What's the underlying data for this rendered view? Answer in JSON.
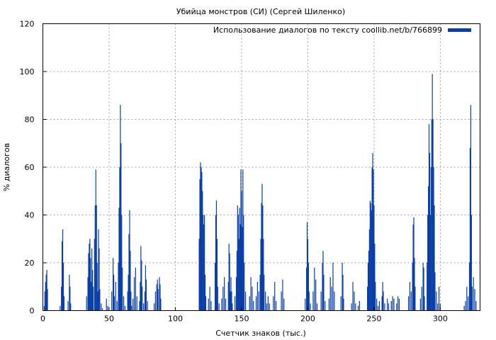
{
  "chart_data": {
    "type": "bar",
    "title": "Убийца монстров (СИ) (Сергей Шиленко)",
    "xlabel": "Счетчик знаков (тыс.)",
    "ylabel": "% диалогов",
    "xlim": [
      0,
      330
    ],
    "ylim": [
      0,
      120
    ],
    "xticks": [
      0,
      50,
      100,
      150,
      200,
      250,
      300
    ],
    "yticks": [
      0,
      20,
      40,
      60,
      80,
      100,
      120
    ],
    "grid": true,
    "legend_position": "top-right",
    "bar_color": "#0a3fa8",
    "series": [
      {
        "name": "Использование диалогов по тексту coollib.net/b/766899",
        "points": [
          [
            1,
            2
          ],
          [
            1.5,
            8
          ],
          [
            2,
            12
          ],
          [
            2.5,
            15
          ],
          [
            3,
            17
          ],
          [
            3.5,
            9
          ],
          [
            13,
            2
          ],
          [
            14,
            10
          ],
          [
            14.5,
            29
          ],
          [
            15,
            34
          ],
          [
            15.5,
            20
          ],
          [
            16,
            6
          ],
          [
            19,
            4
          ],
          [
            20,
            15
          ],
          [
            20.5,
            10
          ],
          [
            21,
            3
          ],
          [
            33,
            6
          ],
          [
            34,
            14
          ],
          [
            34.5,
            24
          ],
          [
            35,
            28
          ],
          [
            35.5,
            30
          ],
          [
            36,
            22
          ],
          [
            36.5,
            12
          ],
          [
            37,
            26
          ],
          [
            37.5,
            17
          ],
          [
            38,
            10
          ],
          [
            39,
            30
          ],
          [
            39.5,
            44
          ],
          [
            40,
            59
          ],
          [
            40.5,
            44
          ],
          [
            41,
            20
          ],
          [
            41.5,
            8
          ],
          [
            42,
            34
          ],
          [
            42.5,
            26
          ],
          [
            43,
            9
          ],
          [
            44,
            3
          ],
          [
            45,
            1
          ],
          [
            48,
            5
          ],
          [
            49,
            2
          ],
          [
            52,
            8
          ],
          [
            53,
            22
          ],
          [
            53.5,
            15
          ],
          [
            54,
            6
          ],
          [
            55,
            12
          ],
          [
            56,
            4
          ],
          [
            57,
            20
          ],
          [
            57.5,
            43
          ],
          [
            58,
            60
          ],
          [
            58.5,
            86
          ],
          [
            59,
            70
          ],
          [
            59.5,
            40
          ],
          [
            60,
            18
          ],
          [
            61,
            6
          ],
          [
            62,
            2
          ],
          [
            64,
            8
          ],
          [
            64.5,
            15
          ],
          [
            65,
            32
          ],
          [
            65.5,
            42
          ],
          [
            66,
            25
          ],
          [
            66.5,
            8
          ],
          [
            67,
            2
          ],
          [
            68,
            5
          ],
          [
            69,
            14
          ],
          [
            70,
            18
          ],
          [
            71,
            6
          ],
          [
            73,
            4
          ],
          [
            73.5,
            12
          ],
          [
            74,
            27
          ],
          [
            74.5,
            21
          ],
          [
            75,
            10
          ],
          [
            76,
            3
          ],
          [
            77,
            8
          ],
          [
            77.5,
            19
          ],
          [
            78,
            13
          ],
          [
            79,
            4
          ],
          [
            84,
            3
          ],
          [
            85,
            8
          ],
          [
            86,
            11
          ],
          [
            86.5,
            13
          ],
          [
            87,
            9
          ],
          [
            88,
            14
          ],
          [
            88.5,
            11
          ],
          [
            89,
            5
          ],
          [
            118,
            30
          ],
          [
            118.5,
            55
          ],
          [
            119,
            62
          ],
          [
            119.5,
            60
          ],
          [
            120,
            58
          ],
          [
            120.5,
            50
          ],
          [
            121,
            40
          ],
          [
            121.5,
            36
          ],
          [
            122,
            40
          ],
          [
            122.5,
            15
          ],
          [
            123,
            6
          ],
          [
            125,
            5
          ],
          [
            126,
            10
          ],
          [
            127,
            4
          ],
          [
            130,
            20
          ],
          [
            130.5,
            40
          ],
          [
            131,
            46
          ],
          [
            131.5,
            30
          ],
          [
            132,
            10
          ],
          [
            133,
            3
          ],
          [
            135,
            5
          ],
          [
            136,
            10
          ],
          [
            137,
            14
          ],
          [
            138,
            5
          ],
          [
            140,
            12
          ],
          [
            140.5,
            28
          ],
          [
            141,
            24
          ],
          [
            141.5,
            8
          ],
          [
            142,
            14
          ],
          [
            142.5,
            8
          ],
          [
            143,
            3
          ],
          [
            145,
            6
          ],
          [
            146,
            14
          ],
          [
            146.5,
            25
          ],
          [
            147,
            44
          ],
          [
            147.5,
            40
          ],
          [
            148,
            30
          ],
          [
            148.5,
            43
          ],
          [
            149,
            36
          ],
          [
            149.5,
            59
          ],
          [
            150,
            50
          ],
          [
            150.5,
            35
          ],
          [
            151,
            59
          ],
          [
            151.5,
            40
          ],
          [
            152,
            20
          ],
          [
            153,
            8
          ],
          [
            156,
            6
          ],
          [
            157,
            14
          ],
          [
            158,
            10
          ],
          [
            159,
            4
          ],
          [
            161,
            6
          ],
          [
            162,
            12
          ],
          [
            163,
            8
          ],
          [
            164,
            15
          ],
          [
            164.5,
            30
          ],
          [
            165,
            45
          ],
          [
            165.5,
            53
          ],
          [
            166,
            44
          ],
          [
            166.5,
            30
          ],
          [
            167,
            15
          ],
          [
            168,
            8
          ],
          [
            169,
            3
          ],
          [
            170,
            6
          ],
          [
            171,
            3
          ],
          [
            174,
            6
          ],
          [
            175,
            12
          ],
          [
            176,
            4
          ],
          [
            180,
            8
          ],
          [
            181,
            13
          ],
          [
            182,
            5
          ],
          [
            198,
            5
          ],
          [
            199,
            18
          ],
          [
            199.5,
            37
          ],
          [
            200,
            30
          ],
          [
            200.5,
            20
          ],
          [
            201,
            8
          ],
          [
            202,
            3
          ],
          [
            204,
            8
          ],
          [
            205,
            18
          ],
          [
            206,
            13
          ],
          [
            207,
            3
          ],
          [
            210,
            8
          ],
          [
            211,
            20
          ],
          [
            211.5,
            25
          ],
          [
            212,
            15
          ],
          [
            213,
            4
          ],
          [
            216,
            5
          ],
          [
            217,
            14
          ],
          [
            218,
            10
          ],
          [
            219,
            20
          ],
          [
            220,
            8
          ],
          [
            225,
            6
          ],
          [
            226,
            20
          ],
          [
            226.5,
            15
          ],
          [
            227,
            5
          ],
          [
            233,
            3
          ],
          [
            234,
            12
          ],
          [
            235,
            8
          ],
          [
            236,
            3
          ],
          [
            238,
            2
          ],
          [
            239,
            4
          ],
          [
            245,
            10
          ],
          [
            245.5,
            20
          ],
          [
            246,
            25
          ],
          [
            246.5,
            34
          ],
          [
            247,
            46
          ],
          [
            247.5,
            45
          ],
          [
            248,
            42
          ],
          [
            248.5,
            60
          ],
          [
            249,
            66
          ],
          [
            249.5,
            59
          ],
          [
            250,
            44
          ],
          [
            250.5,
            28
          ],
          [
            251,
            12
          ],
          [
            252,
            5
          ],
          [
            253,
            2
          ],
          [
            254,
            4
          ],
          [
            256,
            6
          ],
          [
            256.5,
            12
          ],
          [
            257,
            8
          ],
          [
            258,
            3
          ],
          [
            260,
            5
          ],
          [
            261,
            3
          ],
          [
            263,
            4
          ],
          [
            264,
            6
          ],
          [
            265,
            5
          ],
          [
            267,
            3
          ],
          [
            268,
            6
          ],
          [
            269,
            5
          ],
          [
            276,
            6
          ],
          [
            277,
            12
          ],
          [
            278,
            8
          ],
          [
            279,
            20
          ],
          [
            279.5,
            36
          ],
          [
            280,
            39
          ],
          [
            280.5,
            22
          ],
          [
            281,
            10
          ],
          [
            285,
            5
          ],
          [
            286,
            10
          ],
          [
            287,
            20
          ],
          [
            287.5,
            18
          ],
          [
            288,
            6
          ],
          [
            290,
            20
          ],
          [
            290.5,
            40
          ],
          [
            291,
            52
          ],
          [
            291.5,
            78
          ],
          [
            292,
            66
          ],
          [
            292.5,
            40
          ],
          [
            293,
            60
          ],
          [
            293.5,
            80
          ],
          [
            294,
            99
          ],
          [
            294.5,
            80
          ],
          [
            295,
            60
          ],
          [
            295.5,
            44
          ],
          [
            296,
            16
          ],
          [
            297,
            8
          ],
          [
            298,
            3
          ],
          [
            299,
            10
          ],
          [
            300,
            3
          ],
          [
            318,
            2
          ],
          [
            319,
            4
          ],
          [
            320,
            10
          ],
          [
            321,
            6
          ],
          [
            322,
            20
          ],
          [
            322.5,
            68
          ],
          [
            323,
            86
          ],
          [
            323.5,
            40
          ],
          [
            324,
            10
          ],
          [
            325,
            14
          ],
          [
            326,
            9
          ],
          [
            327,
            4
          ]
        ]
      }
    ]
  }
}
